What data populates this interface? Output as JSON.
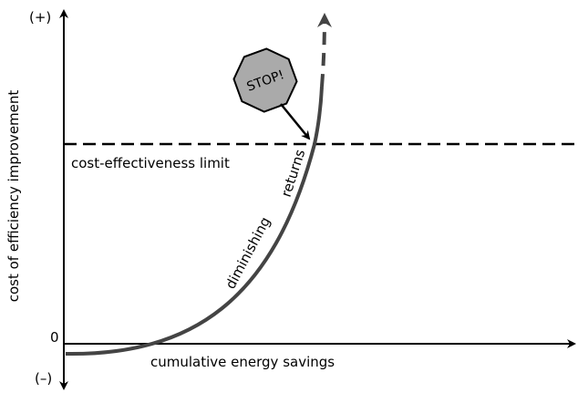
{
  "axes": {
    "y_top": "(+)",
    "y_bottom": "(–)",
    "origin": "0",
    "y_label": "cost of efficiency improvement",
    "x_label": "cumulative energy savings"
  },
  "limit_label": "cost-effectiveness limit",
  "curve_label": [
    "diminishing",
    "returns"
  ],
  "stop_sign": "STOP!"
}
